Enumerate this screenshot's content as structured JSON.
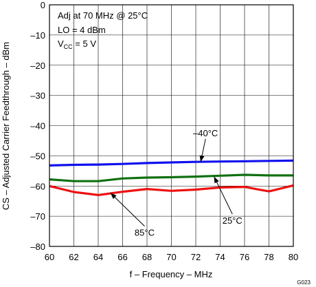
{
  "chart_data": {
    "type": "line",
    "xlabel": "f – Frequency – MHz",
    "ylabel": "CS – Adjusted Carrier Feedthrough – dBm",
    "xlim": [
      60,
      80
    ],
    "ylim": [
      -80,
      0
    ],
    "xticks": [
      "60",
      "62",
      "64",
      "66",
      "68",
      "70",
      "72",
      "74",
      "76",
      "78",
      "80"
    ],
    "yticks": [
      "0",
      "–10",
      "–20",
      "–30",
      "–40",
      "–50",
      "–60",
      "–70",
      "–80"
    ],
    "grid": true,
    "conditions": {
      "line1": "Adj at 70 MHz @ 25°C",
      "line2": "LO = 4 dBm",
      "line3_prefix": "V",
      "line3_sub": "CC",
      "line3_suffix": " =  5 V"
    },
    "series": [
      {
        "name": "–40°C",
        "color": "#1010ee",
        "x": [
          60,
          62,
          64,
          66,
          68,
          70,
          72,
          74,
          76,
          78,
          80
        ],
        "y": [
          -53.2,
          -53.0,
          -52.9,
          -52.7,
          -52.4,
          -52.2,
          -52.0,
          -51.9,
          -51.8,
          -51.7,
          -51.6
        ]
      },
      {
        "name": "25°C",
        "color": "#107010",
        "x": [
          60,
          62,
          64,
          66,
          68,
          70,
          72,
          74,
          76,
          78,
          80
        ],
        "y": [
          -57.8,
          -58.4,
          -58.4,
          -57.5,
          -57.2,
          -57.1,
          -56.9,
          -56.6,
          -56.3,
          -56.5,
          -56.5
        ]
      },
      {
        "name": "85°C",
        "color": "#ee1010",
        "x": [
          60,
          62,
          64,
          66,
          68,
          70,
          72,
          74,
          76,
          78,
          80
        ],
        "y": [
          -60.0,
          -62.0,
          -63.0,
          -61.9,
          -61.0,
          -61.6,
          -61.2,
          -60.5,
          -60.3,
          -61.8,
          -59.8
        ]
      }
    ],
    "annotations": [
      {
        "text": "–40°C",
        "series": "–40°C",
        "text_x": 72.8,
        "text_y": -43.5,
        "point_x": 72.4,
        "point_y": -52.0
      },
      {
        "text": "25°C",
        "series": "25°C",
        "text_x": 75.0,
        "text_y": -72.5,
        "point_x": 73.5,
        "point_y": -56.9
      },
      {
        "text": "85°C",
        "series": "85°C",
        "text_x": 67.8,
        "text_y": -76.5,
        "point_x": 65.0,
        "point_y": -62.3
      }
    ],
    "figure_code": "G023"
  }
}
